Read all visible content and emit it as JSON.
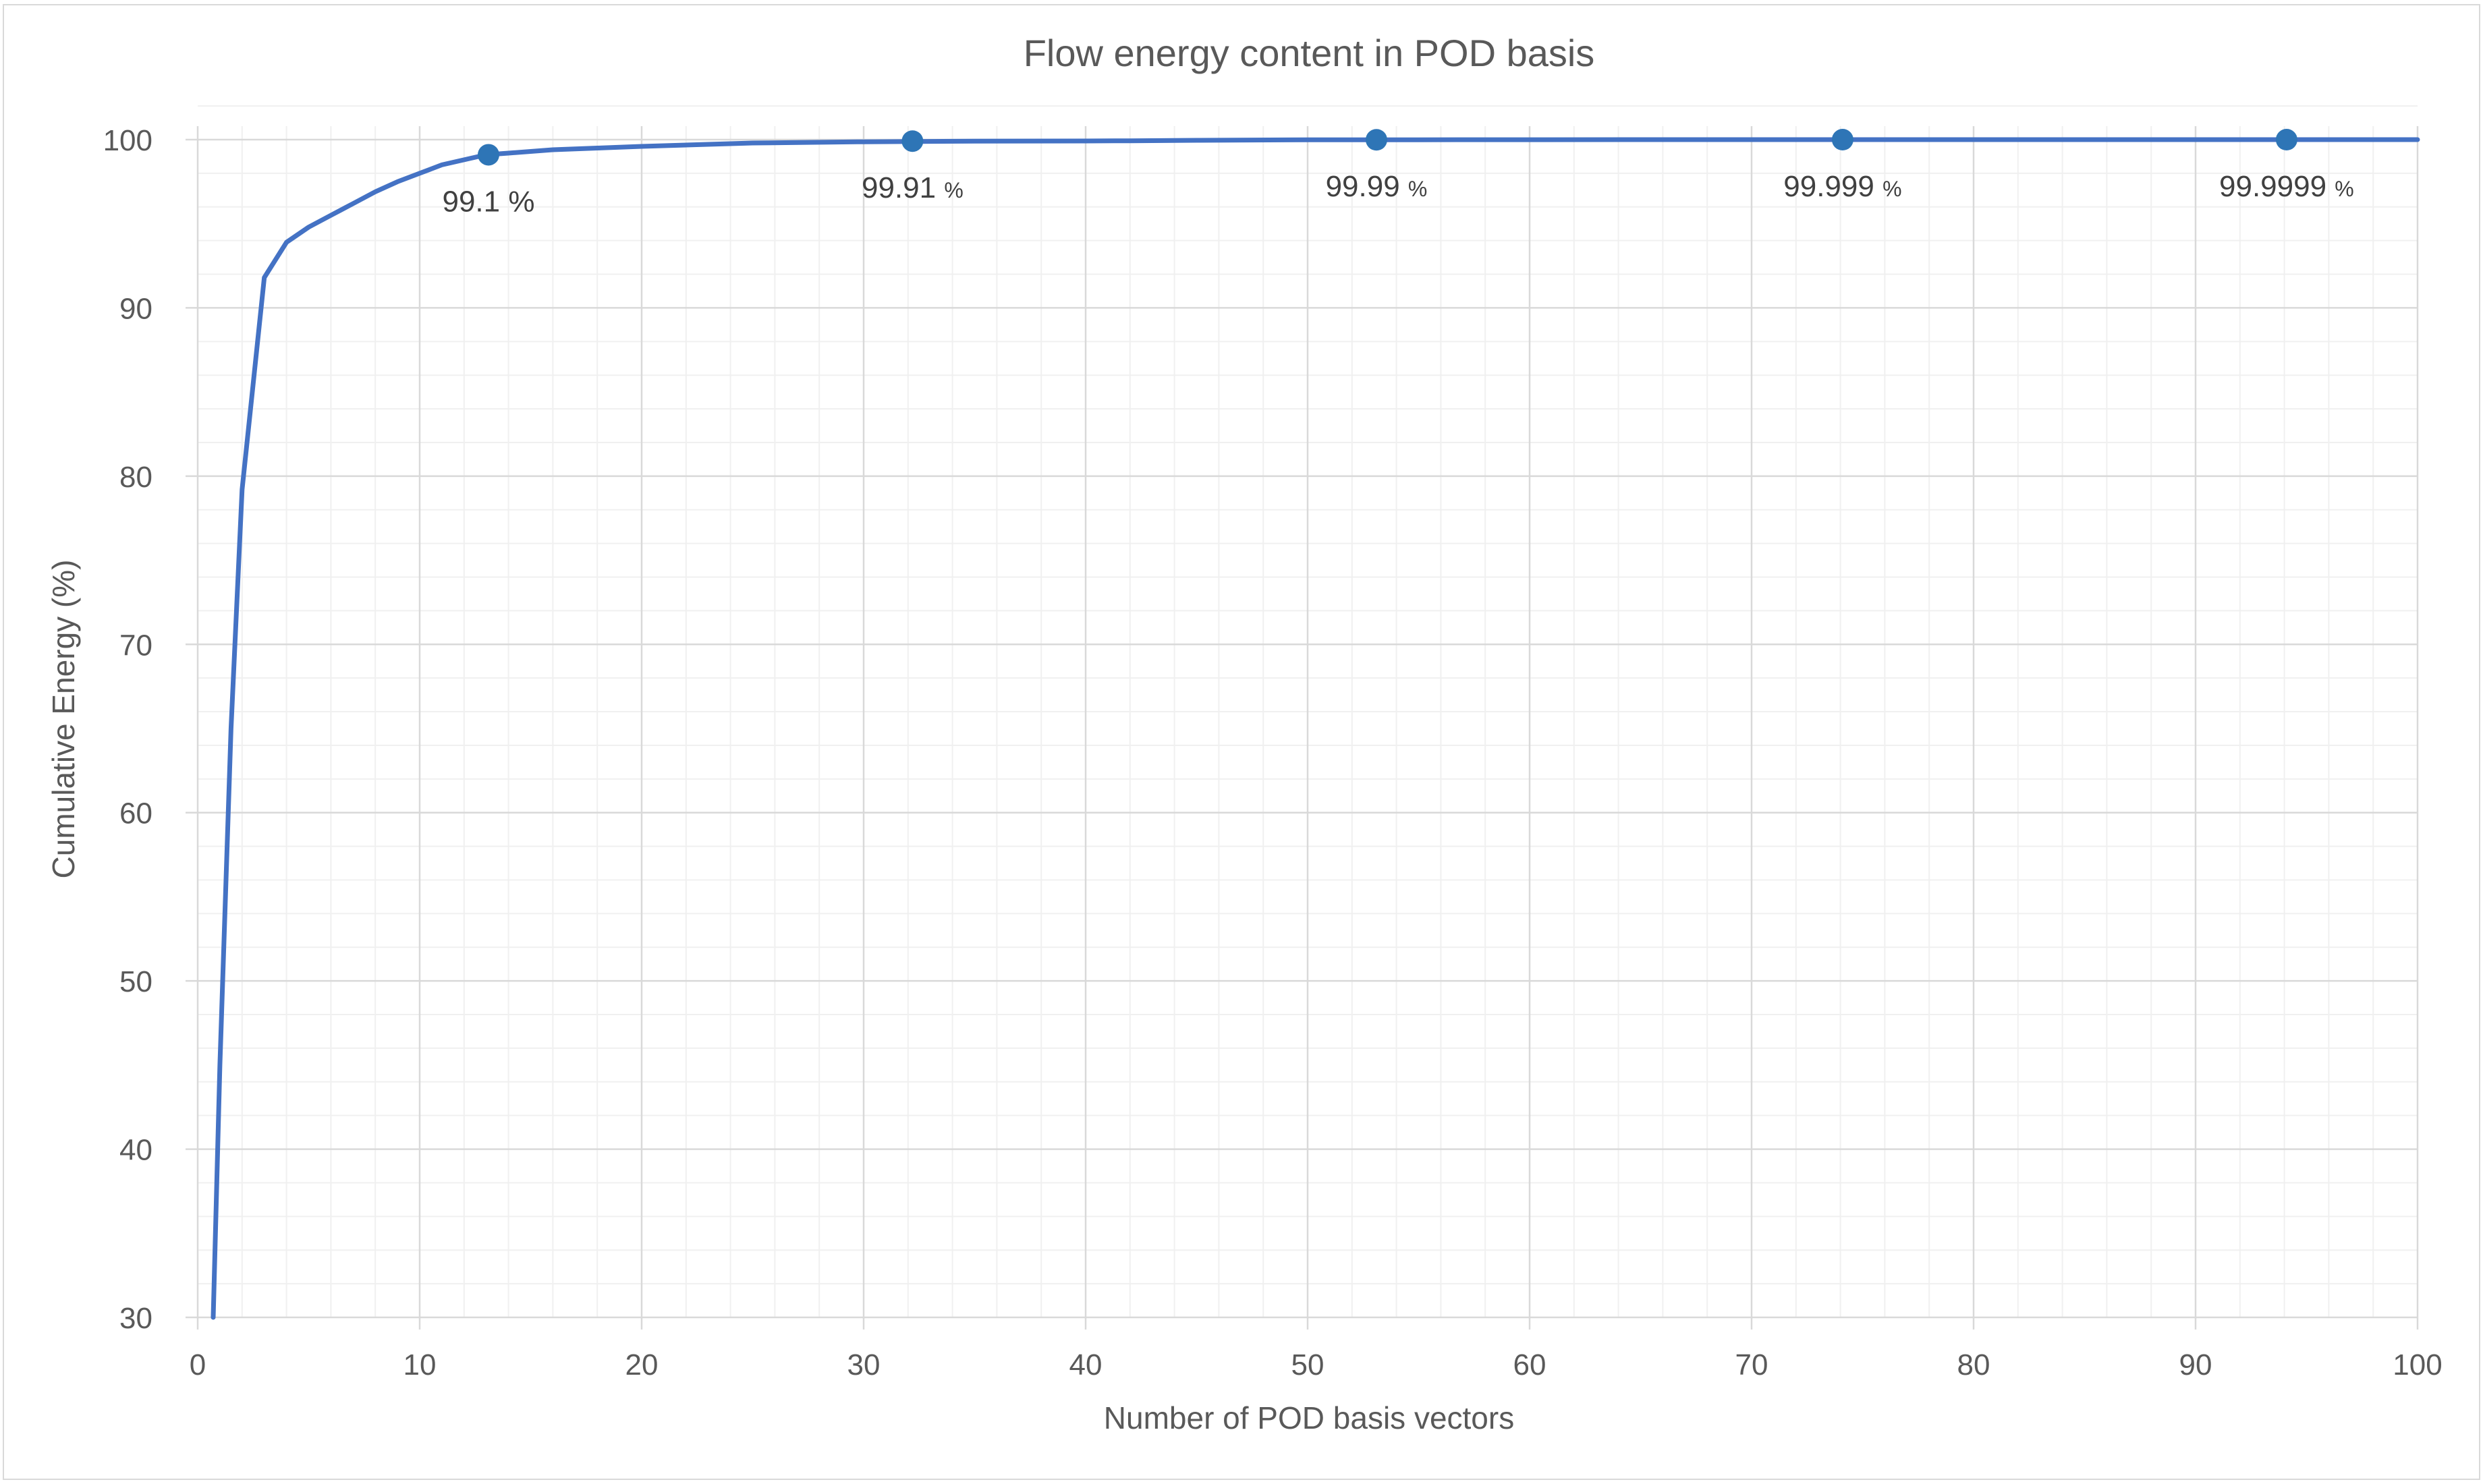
{
  "chart_data": {
    "type": "line",
    "title": "Flow energy content in POD basis",
    "xlabel": "Number of POD basis vectors",
    "ylabel": "Cumulative Energy (%)",
    "xlim": [
      0,
      100
    ],
    "ylim": [
      30,
      100
    ],
    "xticks": [
      0,
      10,
      20,
      30,
      40,
      50,
      60,
      70,
      80,
      90,
      100
    ],
    "yticks": [
      30,
      40,
      50,
      60,
      70,
      80,
      90,
      100
    ],
    "grid": true,
    "legend": "none",
    "color": "#4472C4",
    "marker_color": "#2E75B6",
    "series": [
      {
        "x": [
          0.7,
          1,
          1.5,
          2,
          3,
          4,
          5,
          6,
          7,
          8,
          9,
          10,
          11,
          12,
          13,
          14,
          16,
          18,
          20,
          25,
          30,
          35,
          40,
          42,
          45,
          50,
          55,
          60,
          70,
          80,
          90,
          100
        ],
        "y": [
          30,
          45,
          65,
          79.2,
          91.8,
          93.9,
          94.8,
          95.5,
          96.2,
          96.9,
          97.5,
          98.0,
          98.5,
          98.8,
          99.1,
          99.2,
          99.4,
          99.5,
          99.6,
          99.8,
          99.87,
          99.91,
          99.92,
          99.93,
          99.96,
          99.99,
          99.99,
          99.995,
          99.999,
          99.9995,
          99.9999,
          99.9999
        ]
      }
    ],
    "markers": [
      {
        "x": 13.1,
        "y": 99.1,
        "value": "99.1",
        "unit": "%"
      },
      {
        "x": 32.2,
        "y": 99.91,
        "value": "99.91",
        "unit": "%"
      },
      {
        "x": 53.1,
        "y": 99.99,
        "value": "99.99",
        "unit": "%"
      },
      {
        "x": 74.1,
        "y": 99.999,
        "value": "99.999",
        "unit": "%"
      },
      {
        "x": 94.1,
        "y": 99.9999,
        "value": "99.9999",
        "unit": "%"
      }
    ]
  }
}
